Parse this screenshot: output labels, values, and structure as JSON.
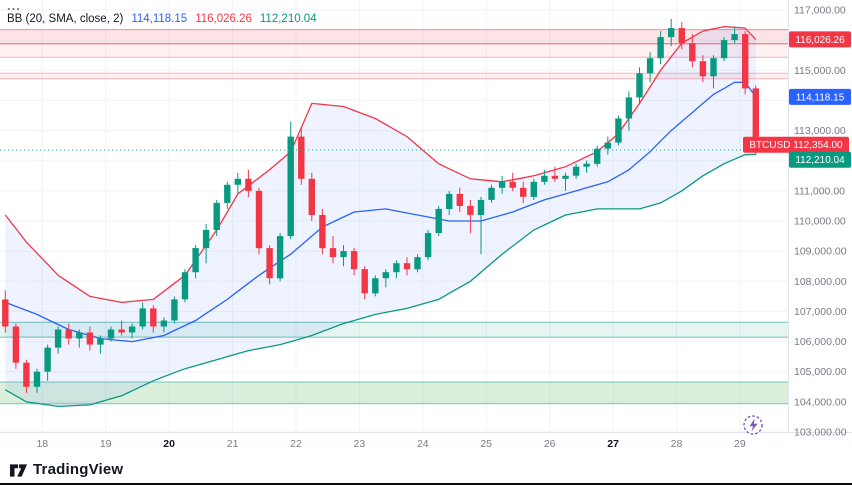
{
  "legend": {
    "menu_dots": "...",
    "indicator_title": "BB (20, SMA, close, 2)",
    "values": [
      {
        "label": "basis",
        "text": "114,118.15",
        "color": "#2962ff"
      },
      {
        "label": "upper",
        "text": "116,026.26",
        "color": "#f23645"
      },
      {
        "label": "lower",
        "text": "112,210.04",
        "color": "#089981"
      }
    ]
  },
  "footer": {
    "brand": "TradingView"
  },
  "price_axis": {
    "labels": [
      {
        "price": 117000,
        "text": "117,000.00"
      },
      {
        "price": 115000,
        "text": "115,000.00"
      },
      {
        "price": 113000,
        "text": "113,000.00"
      },
      {
        "price": 111000,
        "text": "111,000.00"
      },
      {
        "price": 110000,
        "text": "110,000.00"
      },
      {
        "price": 109000,
        "text": "109,000.00"
      },
      {
        "price": 108000,
        "text": "108,000.00"
      },
      {
        "price": 107000,
        "text": "107,000.00"
      },
      {
        "price": 106000,
        "text": "106,000.00"
      },
      {
        "price": 105000,
        "text": "105,000.00"
      },
      {
        "price": 104000,
        "text": "104,000.00"
      },
      {
        "price": 103000,
        "text": "103,000.00"
      }
    ],
    "badges": [
      {
        "text": "116,026.26",
        "price": 116026.26,
        "bg": "#f23645",
        "wide": false
      },
      {
        "text": "114,118.15",
        "price": 114118.15,
        "bg": "#2962ff",
        "wide": false
      },
      {
        "text": "BTCUSD 112,354.00",
        "price": 112354,
        "bg": "#f23645",
        "wide": true
      },
      {
        "text": "112,210.04",
        "price": 112210.04,
        "bg": "#089981",
        "wide": false
      }
    ]
  },
  "time_axis": {
    "labels": [
      {
        "text": "18",
        "bold": false
      },
      {
        "text": "19",
        "bold": false
      },
      {
        "text": "20",
        "bold": true
      },
      {
        "text": "21",
        "bold": false
      },
      {
        "text": "22",
        "bold": false
      },
      {
        "text": "23",
        "bold": false
      },
      {
        "text": "24",
        "bold": false
      },
      {
        "text": "25",
        "bold": false
      },
      {
        "text": "26",
        "bold": false
      },
      {
        "text": "27",
        "bold": true
      },
      {
        "text": "28",
        "bold": false
      },
      {
        "text": "29",
        "bold": false
      }
    ]
  },
  "chart_data": {
    "type": "candlestick",
    "symbol": "BTCUSD",
    "title": "BTCUSD with Bollinger Bands (20, SMA, close, 2)",
    "ylim": [
      103000,
      117000
    ],
    "grid_step": 1000,
    "last_price": 112354,
    "indicator": {
      "name": "BB",
      "length": 20,
      "source": "close",
      "stdev": 2,
      "basis": 114118.15,
      "upper": 116026.26,
      "lower": 112210.04
    },
    "days": [
      "18",
      "19",
      "20",
      "21",
      "22",
      "23",
      "24",
      "25",
      "26",
      "27",
      "28",
      "29"
    ],
    "candles": [
      [
        107400,
        107700,
        106300,
        106500
      ],
      [
        106500,
        106600,
        105100,
        105300
      ],
      [
        105300,
        105400,
        104300,
        104500
      ],
      [
        104500,
        105100,
        104300,
        105000
      ],
      [
        105000,
        105900,
        104700,
        105800
      ],
      [
        105800,
        106500,
        105600,
        106400
      ],
      [
        106400,
        106600,
        105900,
        106100
      ],
      [
        106100,
        106400,
        105800,
        106300
      ],
      [
        106300,
        106500,
        105700,
        105900
      ],
      [
        105900,
        106200,
        105600,
        106100
      ],
      [
        106100,
        106500,
        106000,
        106400
      ],
      [
        106400,
        106700,
        106200,
        106300
      ],
      [
        106300,
        106600,
        106100,
        106500
      ],
      [
        106500,
        107300,
        106400,
        107100
      ],
      [
        107100,
        107200,
        106300,
        106500
      ],
      [
        106500,
        106800,
        106300,
        106700
      ],
      [
        106700,
        107500,
        106600,
        107400
      ],
      [
        107400,
        108400,
        107300,
        108300
      ],
      [
        108300,
        109200,
        108100,
        109100
      ],
      [
        109100,
        109900,
        108600,
        109700
      ],
      [
        109700,
        110700,
        109500,
        110600
      ],
      [
        110600,
        111300,
        110400,
        111200
      ],
      [
        111200,
        111600,
        110900,
        111400
      ],
      [
        111400,
        111700,
        110800,
        111000
      ],
      [
        111000,
        111100,
        108900,
        109100
      ],
      [
        109100,
        109200,
        107900,
        108100
      ],
      [
        108100,
        109600,
        108000,
        109500
      ],
      [
        109500,
        113300,
        109400,
        112800
      ],
      [
        112800,
        113100,
        111200,
        111400
      ],
      [
        111400,
        111600,
        110000,
        110200
      ],
      [
        110200,
        110400,
        108900,
        109100
      ],
      [
        109100,
        109500,
        108600,
        108800
      ],
      [
        108800,
        109200,
        108500,
        109000
      ],
      [
        109000,
        109100,
        108200,
        108400
      ],
      [
        108400,
        108500,
        107400,
        107600
      ],
      [
        107600,
        108200,
        107500,
        108100
      ],
      [
        108100,
        108400,
        107800,
        108300
      ],
      [
        108300,
        108700,
        108100,
        108600
      ],
      [
        108600,
        108800,
        108200,
        108400
      ],
      [
        108400,
        108900,
        108300,
        108800
      ],
      [
        108800,
        109700,
        108700,
        109600
      ],
      [
        109600,
        110500,
        109500,
        110400
      ],
      [
        110400,
        111000,
        110200,
        110900
      ],
      [
        110900,
        111100,
        110300,
        110500
      ],
      [
        110500,
        110700,
        109600,
        110200
      ],
      [
        110200,
        110800,
        108900,
        110700
      ],
      [
        110700,
        111200,
        110600,
        111100
      ],
      [
        111100,
        111500,
        110900,
        111300
      ],
      [
        111300,
        111600,
        111000,
        111100
      ],
      [
        111100,
        111300,
        110600,
        110800
      ],
      [
        110800,
        111400,
        110700,
        111300
      ],
      [
        111300,
        111700,
        111200,
        111500
      ],
      [
        111500,
        111800,
        111300,
        111400
      ],
      [
        111400,
        111600,
        111000,
        111500
      ],
      [
        111500,
        111900,
        111400,
        111800
      ],
      [
        111800,
        112000,
        111600,
        111900
      ],
      [
        111900,
        112500,
        111800,
        112400
      ],
      [
        112400,
        112800,
        112200,
        112600
      ],
      [
        112600,
        113500,
        112500,
        113400
      ],
      [
        113400,
        114300,
        113000,
        114100
      ],
      [
        114100,
        115100,
        113900,
        114900
      ],
      [
        114900,
        115600,
        114600,
        115400
      ],
      [
        115400,
        116300,
        115200,
        116100
      ],
      [
        116100,
        116700,
        115800,
        116400
      ],
      [
        116400,
        116600,
        115700,
        115900
      ],
      [
        115900,
        116200,
        115100,
        115300
      ],
      [
        115300,
        115500,
        114600,
        114800
      ],
      [
        114800,
        115500,
        114400,
        115400
      ],
      [
        115400,
        116100,
        115300,
        116000
      ],
      [
        116000,
        116400,
        115900,
        116200
      ],
      [
        116200,
        116300,
        114200,
        114400
      ],
      [
        114400,
        114500,
        112200,
        112354
      ]
    ],
    "bands": {
      "upper": [
        [
          0,
          110200
        ],
        [
          2,
          109300
        ],
        [
          5,
          108200
        ],
        [
          8,
          107500
        ],
        [
          11,
          107300
        ],
        [
          14,
          107400
        ],
        [
          17,
          108200
        ],
        [
          20,
          109700
        ],
        [
          22,
          110900
        ],
        [
          25,
          111700
        ],
        [
          27,
          112300
        ],
        [
          29,
          113900
        ],
        [
          32,
          113800
        ],
        [
          35,
          113400
        ],
        [
          38,
          112800
        ],
        [
          41,
          111900
        ],
        [
          44,
          111400
        ],
        [
          47,
          111300
        ],
        [
          50,
          111500
        ],
        [
          53,
          111800
        ],
        [
          56,
          112300
        ],
        [
          58,
          112900
        ],
        [
          60,
          113900
        ],
        [
          62,
          115000
        ],
        [
          64,
          115900
        ],
        [
          66,
          116300
        ],
        [
          68,
          116450
        ],
        [
          70,
          116400
        ],
        [
          71,
          116026
        ]
      ],
      "basis": [
        [
          0,
          107300
        ],
        [
          3,
          106900
        ],
        [
          6,
          106400
        ],
        [
          9,
          106100
        ],
        [
          12,
          106000
        ],
        [
          15,
          106200
        ],
        [
          18,
          106700
        ],
        [
          21,
          107400
        ],
        [
          24,
          108200
        ],
        [
          27,
          108900
        ],
        [
          30,
          109800
        ],
        [
          33,
          110300
        ],
        [
          36,
          110400
        ],
        [
          39,
          110200
        ],
        [
          42,
          110000
        ],
        [
          45,
          110000
        ],
        [
          48,
          110300
        ],
        [
          51,
          110700
        ],
        [
          54,
          111000
        ],
        [
          57,
          111300
        ],
        [
          59,
          111700
        ],
        [
          61,
          112300
        ],
        [
          63,
          113000
        ],
        [
          65,
          113600
        ],
        [
          67,
          114200
        ],
        [
          69,
          114600
        ],
        [
          70,
          114600
        ],
        [
          71,
          114118
        ]
      ],
      "lower": [
        [
          0,
          104400
        ],
        [
          2,
          104000
        ],
        [
          5,
          103850
        ],
        [
          8,
          103900
        ],
        [
          11,
          104200
        ],
        [
          14,
          104700
        ],
        [
          17,
          105100
        ],
        [
          20,
          105400
        ],
        [
          23,
          105700
        ],
        [
          26,
          105900
        ],
        [
          29,
          106200
        ],
        [
          32,
          106600
        ],
        [
          35,
          106900
        ],
        [
          38,
          107100
        ],
        [
          41,
          107400
        ],
        [
          44,
          108000
        ],
        [
          47,
          108900
        ],
        [
          50,
          109700
        ],
        [
          53,
          110200
        ],
        [
          56,
          110400
        ],
        [
          58,
          110400
        ],
        [
          60,
          110400
        ],
        [
          62,
          110600
        ],
        [
          64,
          111000
        ],
        [
          66,
          111500
        ],
        [
          68,
          111900
        ],
        [
          70,
          112200
        ],
        [
          71,
          112210
        ]
      ]
    },
    "zones": [
      {
        "from": 116350,
        "to": 115880,
        "fill": "rgba(242,54,69,0.13)",
        "line": "rgba(242,54,69,0.55)"
      },
      {
        "from": 115880,
        "to": 115430,
        "fill": "rgba(242,54,69,0.07)",
        "line": "rgba(242,54,69,0.38)"
      },
      {
        "from": 114900,
        "to": 114720,
        "fill": "rgba(242,54,69,0.08)",
        "line": "rgba(242,54,69,0.35)"
      },
      {
        "from": 106640,
        "to": 106150,
        "fill": "rgba(8,153,129,0.10)",
        "line": "rgba(8,153,129,0.55)"
      },
      {
        "from": 104660,
        "to": 103940,
        "fill": "rgba(129,199,132,0.28)",
        "line": "rgba(38,166,154,0.6)"
      }
    ],
    "price_line": {
      "price": 112354,
      "color": "#26a69a",
      "style": "dotted"
    },
    "colors": {
      "up": "#089981",
      "down": "#f23645",
      "basis": "#2962ff",
      "upper": "#f23645",
      "lower": "#089981",
      "band_fill": "rgba(41,98,255,0.08)",
      "grid": "#f0f3fa",
      "frame": "#e0e3eb",
      "axis_text": "#787b86",
      "axis_text_bold": "#131722",
      "countdown_icon": "#7e57c2"
    }
  }
}
